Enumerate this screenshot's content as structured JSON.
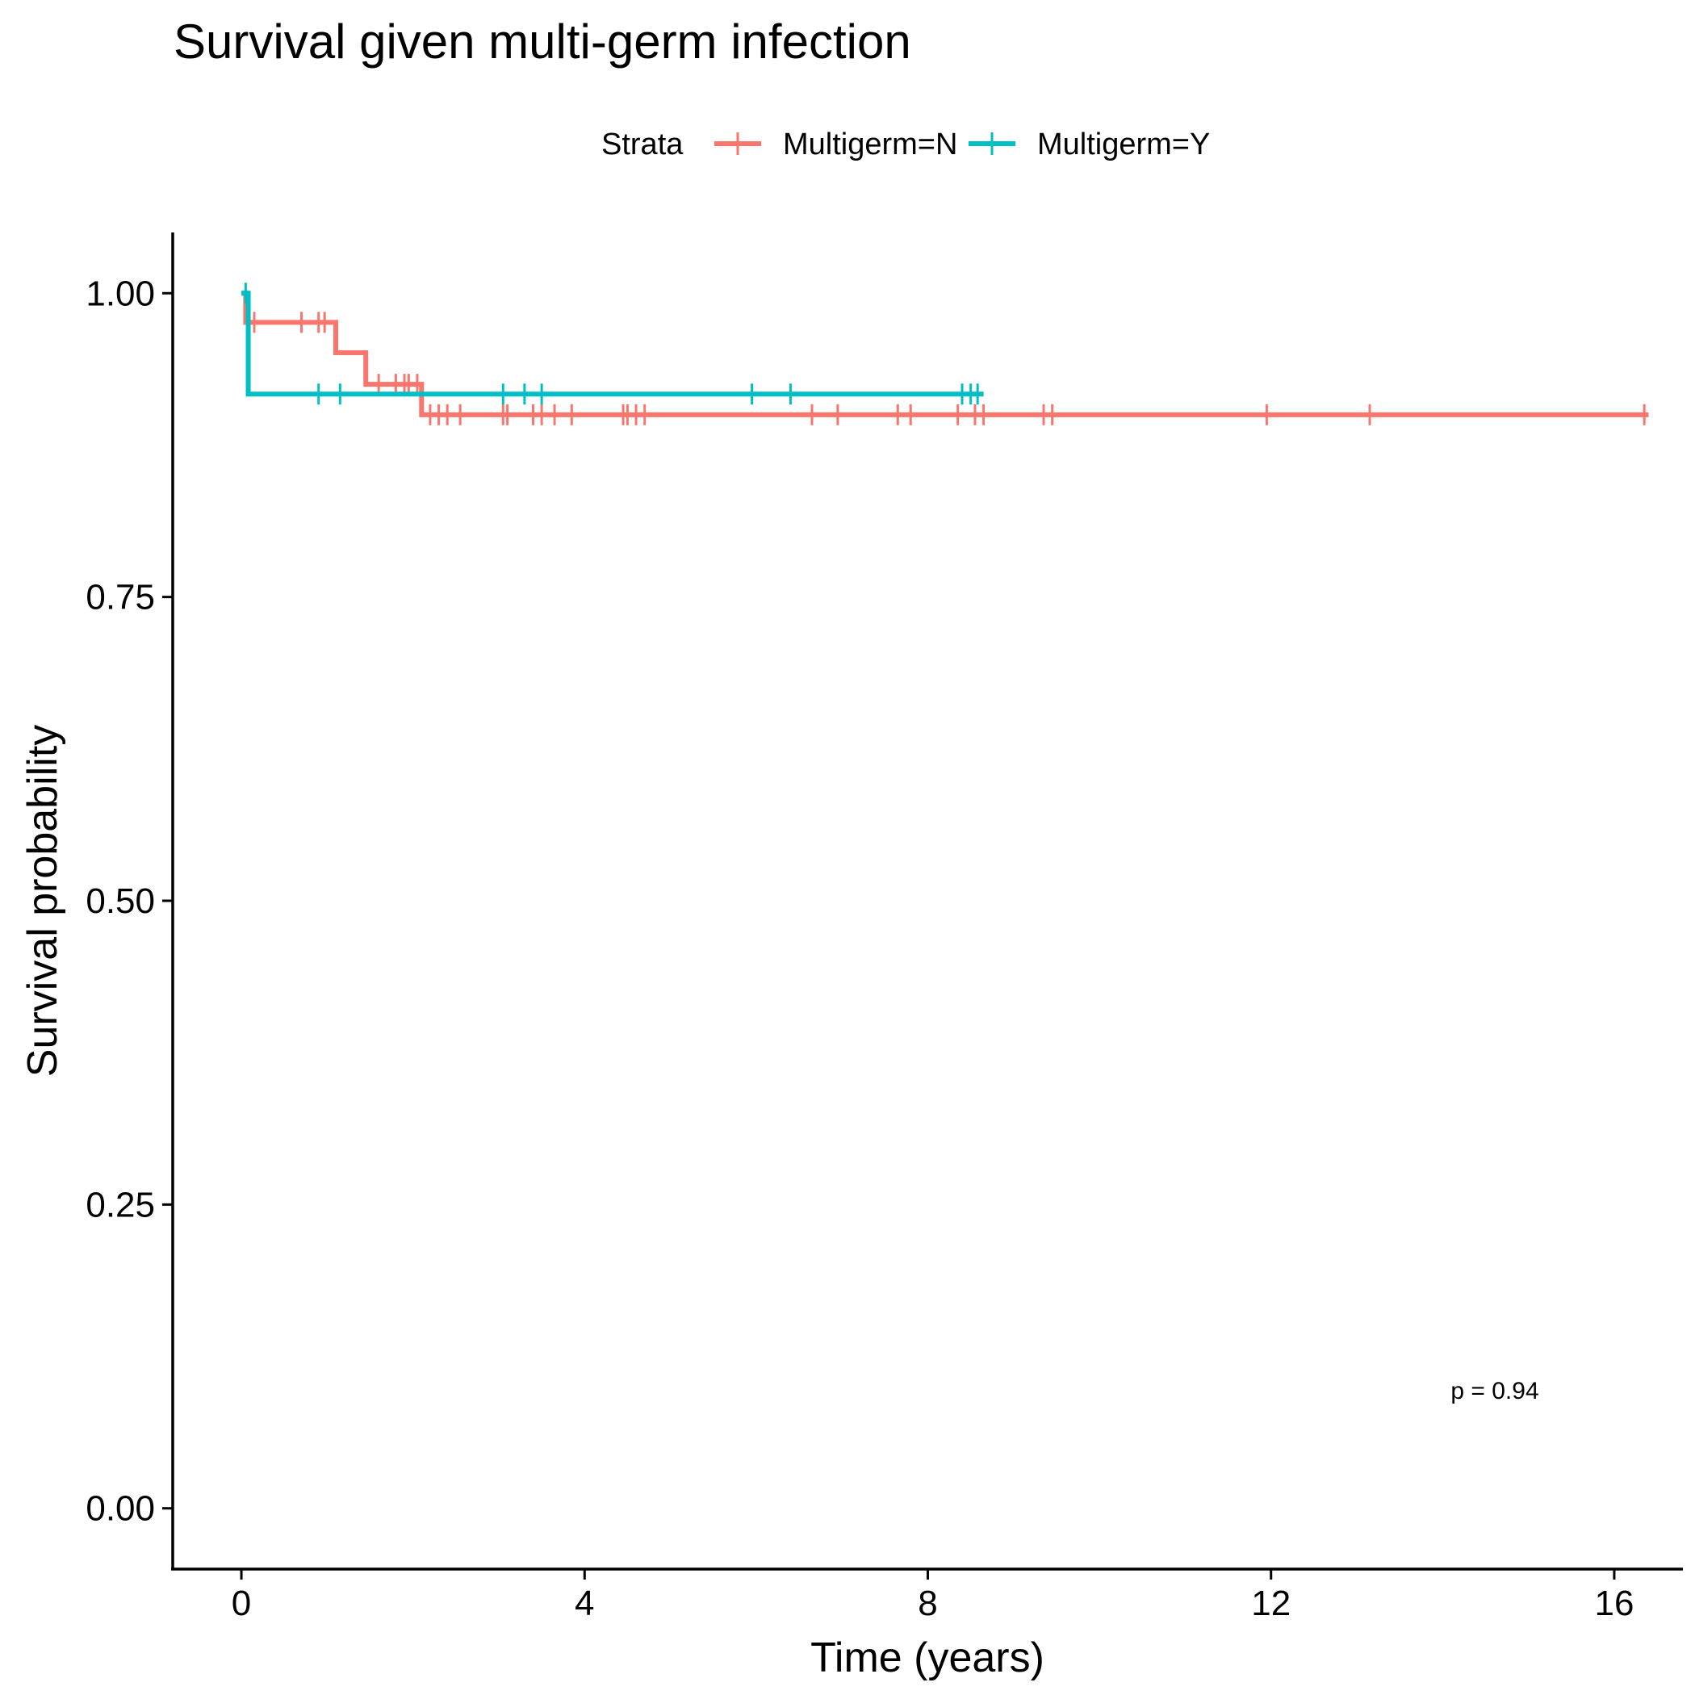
{
  "chart_data": {
    "type": "line",
    "title": "Survival given multi-germ infection",
    "xlabel": "Time (years)",
    "ylabel": "Survival probability",
    "xlim": [
      -0.8,
      16.8
    ],
    "ylim": [
      -0.05,
      1.05
    ],
    "x_ticks": [
      0,
      4,
      8,
      12,
      16
    ],
    "x_tick_labels": [
      "0",
      "4",
      "8",
      "12",
      "16"
    ],
    "y_ticks": [
      0,
      0.25,
      0.5,
      0.75,
      1
    ],
    "y_tick_labels": [
      "0.00",
      "0.25",
      "0.50",
      "0.75",
      "1.00"
    ],
    "grid": false,
    "legend": {
      "title": "Strata",
      "position": "top"
    },
    "annotation": "p = 0.94",
    "series": [
      {
        "name": "Multigerm=N",
        "color": "#F8766D",
        "steps": [
          [
            0,
            1.0
          ],
          [
            0.05,
            0.976
          ],
          [
            1.1,
            0.951
          ],
          [
            1.45,
            0.925
          ],
          [
            2.1,
            0.9
          ]
        ],
        "end_x": 16.4,
        "censor": [
          [
            0.15,
            0.976
          ],
          [
            0.7,
            0.976
          ],
          [
            0.9,
            0.976
          ],
          [
            0.97,
            0.976
          ],
          [
            1.6,
            0.925
          ],
          [
            1.8,
            0.925
          ],
          [
            1.9,
            0.925
          ],
          [
            1.95,
            0.925
          ],
          [
            2.05,
            0.925
          ],
          [
            2.2,
            0.9
          ],
          [
            2.3,
            0.9
          ],
          [
            2.4,
            0.9
          ],
          [
            2.55,
            0.9
          ],
          [
            3.05,
            0.9
          ],
          [
            3.1,
            0.9
          ],
          [
            3.4,
            0.9
          ],
          [
            3.5,
            0.9
          ],
          [
            3.65,
            0.9
          ],
          [
            3.85,
            0.9
          ],
          [
            4.45,
            0.9
          ],
          [
            4.5,
            0.9
          ],
          [
            4.6,
            0.9
          ],
          [
            4.7,
            0.9
          ],
          [
            6.65,
            0.9
          ],
          [
            6.95,
            0.9
          ],
          [
            7.65,
            0.9
          ],
          [
            7.8,
            0.9
          ],
          [
            8.35,
            0.9
          ],
          [
            8.55,
            0.9
          ],
          [
            8.65,
            0.9
          ],
          [
            9.35,
            0.9
          ],
          [
            9.45,
            0.9
          ],
          [
            11.95,
            0.9
          ],
          [
            13.15,
            0.9
          ],
          [
            16.35,
            0.9
          ]
        ]
      },
      {
        "name": "Multigerm=Y",
        "color": "#00BFC4",
        "steps": [
          [
            0,
            1.0
          ],
          [
            0.08,
            0.917
          ]
        ],
        "end_x": 8.65,
        "censor": [
          [
            0.05,
            1.0
          ],
          [
            0.9,
            0.917
          ],
          [
            1.15,
            0.917
          ],
          [
            3.05,
            0.917
          ],
          [
            3.3,
            0.917
          ],
          [
            3.5,
            0.917
          ],
          [
            5.95,
            0.917
          ],
          [
            6.4,
            0.917
          ],
          [
            8.4,
            0.917
          ],
          [
            8.5,
            0.917
          ],
          [
            8.58,
            0.917
          ]
        ]
      }
    ]
  }
}
